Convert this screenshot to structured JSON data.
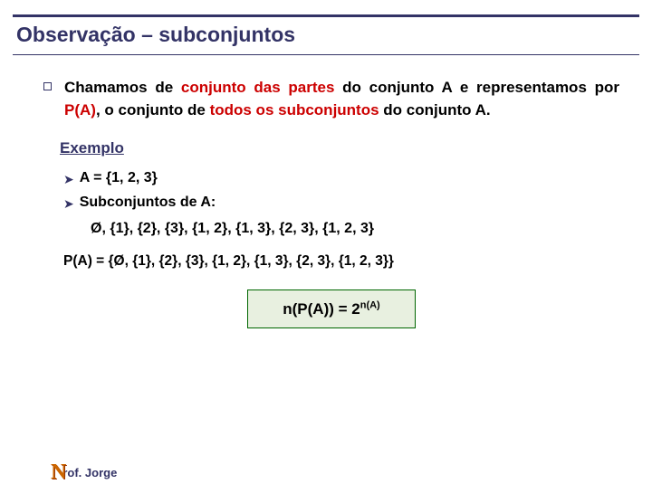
{
  "title": "Observação – subconjuntos",
  "paragraph": {
    "pre": "Chamamos de ",
    "hl1": "conjunto das partes",
    "mid1": " do conjunto A e representamos por ",
    "hl2": "P(A)",
    "mid2": ", o conjunto de ",
    "hl3": "todos os subconjuntos",
    "post": " do conjunto A."
  },
  "example_label": "Exemplo",
  "set_def": "A = {1, 2, 3}",
  "subsets_label": "Subconjuntos de A:",
  "subsets_line": "Ø, {1}, {2}, {3}, {1, 2}, {1, 3}, {2, 3}, {1, 2, 3}",
  "pa_line": "P(A) = {Ø, {1}, {2}, {3}, {1, 2}, {1, 3}, {2, 3}, {1, 2, 3}}",
  "formula_base": "n(P(A)) = 2",
  "formula_exp": "n(A)",
  "author_initial": "N",
  "author_text": "rof. Jorge",
  "colors": {
    "accent_navy": "#333366",
    "accent_red": "#cc0000",
    "box_border": "#006600",
    "box_bg": "#e8f0e0",
    "logo": "#cc6600"
  }
}
